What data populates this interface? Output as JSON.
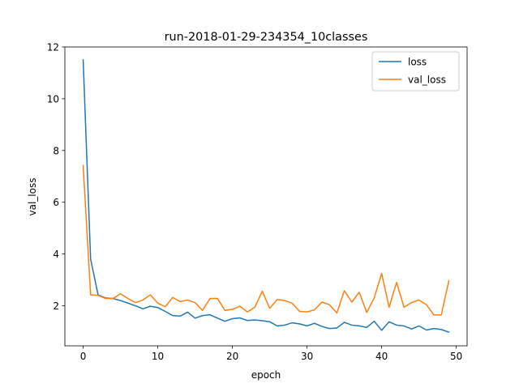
{
  "chart_data": {
    "type": "line",
    "title": "run-2018-01-29-234354_10classes",
    "xlabel": "epoch",
    "ylabel": "val_loss",
    "xlim": [
      -2.45,
      51.45
    ],
    "ylim": [
      0.45,
      12.0
    ],
    "xticks": [
      0,
      10,
      20,
      30,
      40,
      50
    ],
    "yticks": [
      2,
      4,
      6,
      8,
      10,
      12
    ],
    "grid": false,
    "legend_placement": "upper right",
    "x": [
      0,
      1,
      2,
      3,
      4,
      5,
      6,
      7,
      8,
      9,
      10,
      11,
      12,
      13,
      14,
      15,
      16,
      17,
      18,
      19,
      20,
      21,
      22,
      23,
      24,
      25,
      26,
      27,
      28,
      29,
      30,
      31,
      32,
      33,
      34,
      35,
      36,
      37,
      38,
      39,
      40,
      41,
      42,
      43,
      44,
      45,
      46,
      47,
      48,
      49
    ],
    "series": [
      {
        "name": "loss",
        "color": "#1f77b4",
        "values": [
          11.5,
          3.8,
          2.42,
          2.3,
          2.28,
          2.2,
          2.1,
          2.0,
          1.88,
          1.98,
          1.93,
          1.78,
          1.62,
          1.6,
          1.75,
          1.52,
          1.62,
          1.65,
          1.52,
          1.4,
          1.5,
          1.53,
          1.43,
          1.45,
          1.42,
          1.38,
          1.22,
          1.25,
          1.34,
          1.3,
          1.22,
          1.32,
          1.2,
          1.12,
          1.14,
          1.36,
          1.25,
          1.22,
          1.16,
          1.4,
          1.05,
          1.38,
          1.25,
          1.22,
          1.1,
          1.22,
          1.06,
          1.12,
          1.08,
          0.98
        ]
      },
      {
        "name": "val_loss",
        "color": "#ff7f0e",
        "values": [
          7.42,
          2.42,
          2.4,
          2.28,
          2.28,
          2.46,
          2.28,
          2.12,
          2.22,
          2.42,
          2.1,
          1.96,
          2.32,
          2.16,
          2.22,
          2.12,
          1.82,
          2.28,
          2.28,
          1.82,
          1.86,
          1.98,
          1.76,
          1.94,
          2.56,
          1.9,
          2.24,
          2.2,
          2.1,
          1.78,
          1.76,
          1.84,
          2.14,
          2.04,
          1.72,
          2.58,
          2.14,
          2.52,
          1.74,
          2.3,
          3.25,
          1.94,
          2.9,
          1.94,
          2.12,
          2.22,
          2.04,
          1.64,
          1.65,
          2.96
        ]
      }
    ]
  }
}
